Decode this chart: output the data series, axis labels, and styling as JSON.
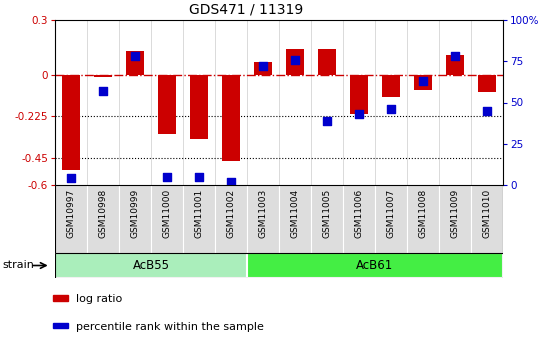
{
  "title": "GDS471 / 11319",
  "samples": [
    "GSM10997",
    "GSM10998",
    "GSM10999",
    "GSM11000",
    "GSM11001",
    "GSM11002",
    "GSM11003",
    "GSM11004",
    "GSM11005",
    "GSM11006",
    "GSM11007",
    "GSM11008",
    "GSM11009",
    "GSM11010"
  ],
  "log_ratio": [
    -0.52,
    -0.01,
    0.13,
    -0.32,
    -0.35,
    -0.47,
    0.07,
    0.14,
    0.14,
    -0.21,
    -0.12,
    -0.08,
    0.11,
    -0.09
  ],
  "percentile_rank": [
    4,
    57,
    78,
    5,
    5,
    2,
    72,
    76,
    39,
    43,
    46,
    63,
    78,
    45
  ],
  "groups": [
    {
      "label": "AcB55",
      "start": 0,
      "end": 5,
      "color": "#99EE99"
    },
    {
      "label": "AcB61",
      "start": 6,
      "end": 13,
      "color": "#33DD33"
    }
  ],
  "ylim_left": [
    -0.6,
    0.3
  ],
  "ylim_right": [
    0,
    100
  ],
  "yticks_left": [
    -0.6,
    -0.45,
    -0.225,
    0,
    0.3
  ],
  "yticks_left_labels": [
    "-0.6",
    "-0.45",
    "-0.225",
    "0",
    "0.3"
  ],
  "yticks_right": [
    0,
    25,
    50,
    75,
    100
  ],
  "yticks_right_labels": [
    "0",
    "25",
    "50",
    "75",
    "100%"
  ],
  "hline_dotted": [
    -0.225,
    -0.45
  ],
  "bar_color": "#CC0000",
  "dot_color": "#0000CC",
  "bar_width": 0.55,
  "dot_size": 28,
  "strain_label": "strain",
  "bg_color": "#ffffff",
  "plot_bg": "#ffffff",
  "cell_bg": "#DDDDDD",
  "group1_color": "#AAEEBB",
  "group2_color": "#44DD44"
}
